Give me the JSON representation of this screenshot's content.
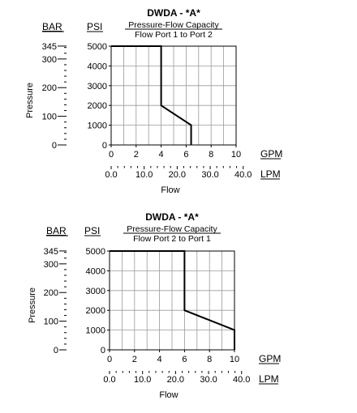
{
  "chart_data": [
    {
      "type": "line",
      "title": "DWDA - *A*",
      "subtitle_1": "Pressure-Flow Capacity",
      "subtitle_2": "Flow Port 1 to Port 2",
      "bar_unit": "BAR",
      "psi_unit": "PSI",
      "gpm_unit": "GPM",
      "lpm_unit": "LPM",
      "ylabel": "Pressure",
      "xlabel": "Flow",
      "psi_ticks": [
        "5000",
        "4000",
        "3000",
        "2000",
        "1000",
        "0"
      ],
      "bar_ticks": [
        "345",
        "300",
        "200",
        "100",
        "0"
      ],
      "gpm_ticks": [
        "0",
        "2",
        "4",
        "6",
        "8",
        "10"
      ],
      "lpm_ticks": [
        "0.0",
        "10.0",
        "20.0",
        "30.0",
        "40.0"
      ],
      "xlim": [
        0,
        10
      ],
      "ylim": [
        0,
        5000
      ],
      "grid": true,
      "series": [
        {
          "x": [
            0,
            4.0,
            4.0,
            6.4,
            6.4
          ],
          "y": [
            5000,
            5000,
            2000,
            1000,
            0
          ]
        }
      ]
    },
    {
      "type": "line",
      "title": "DWDA - *A*",
      "subtitle_1": "Pressure-Flow Capacity",
      "subtitle_2": "Flow Port 2 to Port 1",
      "bar_unit": "BAR",
      "psi_unit": "PSI",
      "gpm_unit": "GPM",
      "lpm_unit": "LPM",
      "ylabel": "Pressure",
      "xlabel": "Flow",
      "psi_ticks": [
        "5000",
        "4000",
        "3000",
        "2000",
        "1000",
        "0"
      ],
      "bar_ticks": [
        "345",
        "300",
        "200",
        "100",
        "0"
      ],
      "gpm_ticks": [
        "0",
        "2",
        "4",
        "6",
        "8",
        "10"
      ],
      "lpm_ticks": [
        "0.0",
        "10.0",
        "20.0",
        "30.0",
        "40.0"
      ],
      "xlim": [
        0,
        10
      ],
      "ylim": [
        0,
        5000
      ],
      "grid": true,
      "series": [
        {
          "x": [
            0,
            6.0,
            6.0,
            10.0,
            10.0
          ],
          "y": [
            5000,
            5000,
            2000,
            1000,
            0
          ]
        }
      ]
    }
  ]
}
